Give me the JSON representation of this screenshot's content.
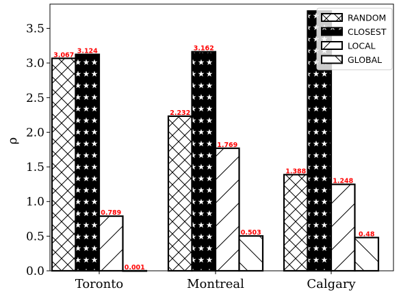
{
  "chart_data": {
    "type": "bar",
    "categories": [
      "Toronto",
      "Montreal",
      "Calgary"
    ],
    "series": [
      {
        "name": "RANDOM",
        "values": [
          3.067,
          2.232,
          1.388
        ],
        "labels": [
          "3.067",
          "2.232",
          "1.388"
        ],
        "pattern": "crosshatch"
      },
      {
        "name": "CLOSEST",
        "values": [
          3.124,
          3.162,
          3.75
        ],
        "labels": [
          "3.124",
          "3.162",
          ""
        ],
        "pattern": "stars"
      },
      {
        "name": "LOCAL",
        "values": [
          0.789,
          1.769,
          1.248
        ],
        "labels": [
          "0.789",
          "1.769",
          "1.248"
        ],
        "pattern": "forward-diagonal"
      },
      {
        "name": "GLOBAL",
        "values": [
          0.001,
          0.503,
          0.48
        ],
        "labels": [
          "0.001",
          "0.503",
          "0.48"
        ],
        "pattern": "back-diagonal"
      }
    ],
    "title": "",
    "xlabel": "",
    "ylabel": "ρ",
    "ylim": [
      0.0,
      3.85
    ],
    "yticks": [
      "0.0",
      "0.5",
      "1.0",
      "1.5",
      "2.0",
      "2.5",
      "3.0",
      "3.5"
    ],
    "grid": false,
    "legend_position": "top-right",
    "colors": {
      "bar_fill": "#ffffff",
      "bar_edge": "#000000",
      "data_label": "#ff0000"
    }
  }
}
